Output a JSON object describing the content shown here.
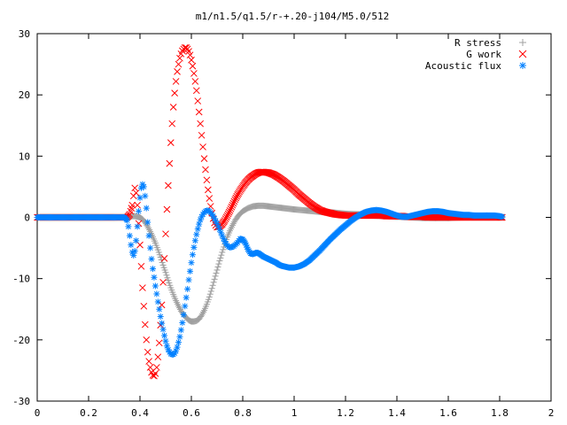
{
  "chart_data": {
    "type": "scatter",
    "title": "m1/n1.5/q1.5/r-+.20-j104/M5.0/512",
    "xlabel": "",
    "ylabel": "",
    "xlim": [
      0,
      2
    ],
    "ylim": [
      -30,
      30
    ],
    "xticks": [
      "0",
      "0.2",
      "0.4",
      "0.6",
      "0.8",
      "1",
      "1.2",
      "1.4",
      "1.6",
      "1.8",
      "2"
    ],
    "yticks": [
      "30",
      "20",
      "10",
      "0",
      "-10",
      "-20",
      "-30"
    ],
    "xtick_values": [
      0,
      0.2,
      0.4,
      0.6,
      0.8,
      1.0,
      1.2,
      1.4,
      1.6,
      1.8,
      2.0
    ],
    "ytick_values": [
      30,
      20,
      10,
      0,
      -10,
      -20,
      -30
    ],
    "grid": false,
    "legend_position": "top-right",
    "series": [
      {
        "name": "R stress",
        "marker": "plus",
        "color": "#a0a0a0",
        "x": [
          0.0,
          0.1,
          0.2,
          0.3,
          0.35,
          0.36,
          0.37,
          0.38,
          0.39,
          0.4,
          0.41,
          0.42,
          0.43,
          0.44,
          0.45,
          0.46,
          0.47,
          0.48,
          0.49,
          0.5,
          0.51,
          0.52,
          0.53,
          0.54,
          0.55,
          0.56,
          0.57,
          0.58,
          0.59,
          0.6,
          0.61,
          0.62,
          0.63,
          0.64,
          0.65,
          0.66,
          0.67,
          0.68,
          0.69,
          0.7,
          0.71,
          0.72,
          0.73,
          0.74,
          0.75,
          0.76,
          0.77,
          0.78,
          0.79,
          0.8,
          0.82,
          0.84,
          0.86,
          0.88,
          0.9,
          0.92,
          0.94,
          0.96,
          0.98,
          1.0,
          1.05,
          1.1,
          1.15,
          1.2,
          1.25,
          1.3,
          1.35,
          1.4,
          1.45,
          1.5,
          1.55,
          1.6,
          1.65,
          1.7,
          1.75,
          1.8,
          1.81
        ],
        "y": [
          0.0,
          0.0,
          0.0,
          0.0,
          0.0,
          0.1,
          0.2,
          0.2,
          0.1,
          0.0,
          -0.3,
          -0.8,
          -1.5,
          -2.3,
          -3.2,
          -4.2,
          -5.3,
          -6.5,
          -7.8,
          -9.0,
          -10.3,
          -11.5,
          -12.6,
          -13.6,
          -14.5,
          -15.3,
          -15.9,
          -16.4,
          -16.8,
          -17.0,
          -17.0,
          -16.9,
          -16.6,
          -16.0,
          -15.2,
          -14.2,
          -13.0,
          -11.6,
          -10.1,
          -8.6,
          -7.1,
          -5.7,
          -4.4,
          -3.2,
          -2.2,
          -1.3,
          -0.5,
          0.1,
          0.6,
          1.0,
          1.5,
          1.8,
          1.9,
          1.9,
          1.8,
          1.7,
          1.6,
          1.5,
          1.4,
          1.3,
          1.1,
          0.9,
          0.8,
          0.6,
          0.5,
          0.3,
          0.2,
          0.1,
          0.0,
          -0.1,
          -0.1,
          -0.1,
          0.0,
          0.0,
          0.0,
          0.0,
          0.0
        ]
      },
      {
        "name": "G work",
        "marker": "cross",
        "color": "#ff0000",
        "x": [
          0.0,
          0.1,
          0.2,
          0.3,
          0.35,
          0.36,
          0.37,
          0.375,
          0.38,
          0.385,
          0.39,
          0.395,
          0.4,
          0.405,
          0.41,
          0.415,
          0.42,
          0.425,
          0.43,
          0.435,
          0.44,
          0.445,
          0.45,
          0.455,
          0.46,
          0.465,
          0.47,
          0.475,
          0.48,
          0.485,
          0.49,
          0.495,
          0.5,
          0.505,
          0.51,
          0.515,
          0.52,
          0.525,
          0.53,
          0.535,
          0.54,
          0.545,
          0.55,
          0.555,
          0.56,
          0.565,
          0.57,
          0.575,
          0.58,
          0.585,
          0.59,
          0.595,
          0.6,
          0.605,
          0.61,
          0.615,
          0.62,
          0.625,
          0.63,
          0.635,
          0.64,
          0.645,
          0.65,
          0.655,
          0.66,
          0.665,
          0.67,
          0.675,
          0.68,
          0.685,
          0.69,
          0.695,
          0.7,
          0.71,
          0.72,
          0.73,
          0.74,
          0.75,
          0.76,
          0.77,
          0.78,
          0.79,
          0.8,
          0.81,
          0.82,
          0.83,
          0.84,
          0.85,
          0.86,
          0.87,
          0.88,
          0.9,
          0.92,
          0.94,
          0.96,
          0.98,
          1.0,
          1.02,
          1.04,
          1.06,
          1.08,
          1.1,
          1.12,
          1.14,
          1.16,
          1.18,
          1.2,
          1.22,
          1.24,
          1.26,
          1.28,
          1.3,
          1.32,
          1.34,
          1.36,
          1.38,
          1.4,
          1.42,
          1.44,
          1.46,
          1.48,
          1.5,
          1.52,
          1.54,
          1.56,
          1.58,
          1.6,
          1.62,
          1.64,
          1.66,
          1.68,
          1.7,
          1.72,
          1.74,
          1.76,
          1.78,
          1.8,
          1.81
        ],
        "y": [
          0.0,
          0.0,
          0.0,
          0.0,
          0.0,
          0.5,
          2.0,
          3.5,
          4.8,
          4.0,
          2.0,
          -1.0,
          -4.5,
          -8.0,
          -11.5,
          -14.5,
          -17.5,
          -20.0,
          -22.0,
          -23.5,
          -24.5,
          -25.3,
          -25.8,
          -25.9,
          -25.5,
          -24.5,
          -22.8,
          -20.5,
          -17.6,
          -14.3,
          -10.6,
          -6.7,
          -2.7,
          1.3,
          5.2,
          8.8,
          12.2,
          15.3,
          18.0,
          20.3,
          22.2,
          23.8,
          25.0,
          26.0,
          26.7,
          27.2,
          27.5,
          27.7,
          27.7,
          27.5,
          27.1,
          26.5,
          25.7,
          24.7,
          23.5,
          22.2,
          20.7,
          19.0,
          17.2,
          15.3,
          13.4,
          11.5,
          9.6,
          7.8,
          6.1,
          4.5,
          3.1,
          1.8,
          0.7,
          -0.2,
          -0.9,
          -1.3,
          -1.6,
          -1.5,
          -1.1,
          -0.5,
          0.3,
          1.1,
          2.0,
          2.9,
          3.7,
          4.4,
          5.0,
          5.6,
          6.1,
          6.5,
          6.8,
          7.1,
          7.3,
          7.4,
          7.4,
          7.3,
          7.0,
          6.5,
          5.9,
          5.2,
          4.5,
          3.7,
          3.0,
          2.3,
          1.7,
          1.2,
          0.9,
          0.7,
          0.5,
          0.4,
          0.3,
          0.3,
          0.3,
          0.3,
          0.3,
          0.3,
          0.3,
          0.3,
          0.2,
          0.2,
          0.2,
          0.2,
          0.1,
          0.1,
          0.1,
          0.1,
          0.0,
          0.0,
          0.0,
          0.0,
          0.0,
          0.0,
          0.0,
          0.0,
          0.0,
          0.0,
          0.0,
          0.0,
          0.0,
          0.0,
          0.0,
          0.0
        ]
      },
      {
        "name": "Acoustic flux",
        "marker": "star",
        "color": "#0080ff",
        "x": [
          0.0,
          0.05,
          0.1,
          0.15,
          0.2,
          0.25,
          0.3,
          0.34,
          0.35,
          0.355,
          0.36,
          0.365,
          0.37,
          0.375,
          0.38,
          0.385,
          0.39,
          0.395,
          0.4,
          0.405,
          0.41,
          0.415,
          0.42,
          0.425,
          0.43,
          0.435,
          0.44,
          0.445,
          0.45,
          0.455,
          0.46,
          0.465,
          0.47,
          0.475,
          0.48,
          0.485,
          0.49,
          0.495,
          0.5,
          0.505,
          0.51,
          0.515,
          0.52,
          0.525,
          0.53,
          0.535,
          0.54,
          0.545,
          0.55,
          0.555,
          0.56,
          0.565,
          0.57,
          0.575,
          0.58,
          0.585,
          0.59,
          0.595,
          0.6,
          0.605,
          0.61,
          0.615,
          0.62,
          0.625,
          0.63,
          0.635,
          0.64,
          0.645,
          0.65,
          0.655,
          0.66,
          0.665,
          0.67,
          0.675,
          0.68,
          0.685,
          0.69,
          0.695,
          0.7,
          0.705,
          0.71,
          0.715,
          0.72,
          0.725,
          0.73,
          0.735,
          0.74,
          0.745,
          0.75,
          0.755,
          0.76,
          0.765,
          0.77,
          0.775,
          0.78,
          0.785,
          0.79,
          0.8,
          0.81,
          0.82,
          0.83,
          0.84,
          0.85,
          0.86,
          0.87,
          0.88,
          0.89,
          0.9,
          0.91,
          0.92,
          0.93,
          0.94,
          0.95,
          0.96,
          0.97,
          0.98,
          0.99,
          1.0,
          1.01,
          1.02,
          1.03,
          1.04,
          1.05,
          1.06,
          1.07,
          1.08,
          1.1,
          1.12,
          1.14,
          1.16,
          1.18,
          1.2,
          1.22,
          1.24,
          1.26,
          1.28,
          1.3,
          1.32,
          1.34,
          1.36,
          1.38,
          1.4,
          1.42,
          1.44,
          1.46,
          1.48,
          1.5,
          1.52,
          1.54,
          1.56,
          1.58,
          1.6,
          1.62,
          1.64,
          1.66,
          1.68,
          1.7,
          1.72,
          1.74,
          1.76,
          1.78,
          1.8,
          1.81
        ],
        "y": [
          0.0,
          0.0,
          0.0,
          0.0,
          0.0,
          0.0,
          0.0,
          0.0,
          -0.5,
          -1.5,
          -3.0,
          -4.5,
          -5.7,
          -6.2,
          -5.5,
          -3.8,
          -1.5,
          1.0,
          3.2,
          4.8,
          5.4,
          5.0,
          3.5,
          1.5,
          -0.8,
          -3.0,
          -5.0,
          -6.8,
          -8.4,
          -9.8,
          -11.2,
          -12.5,
          -13.8,
          -15.0,
          -16.2,
          -17.3,
          -18.3,
          -19.3,
          -20.2,
          -21.0,
          -21.6,
          -22.0,
          -22.3,
          -22.4,
          -22.4,
          -22.2,
          -21.8,
          -21.2,
          -20.4,
          -19.5,
          -18.4,
          -17.2,
          -15.9,
          -14.5,
          -13.1,
          -11.7,
          -10.2,
          -8.8,
          -7.4,
          -6.1,
          -4.9,
          -3.8,
          -2.8,
          -1.9,
          -1.1,
          -0.4,
          0.1,
          0.5,
          0.8,
          1.0,
          1.1,
          1.1,
          1.0,
          0.8,
          0.5,
          0.2,
          -0.2,
          -0.6,
          -1.0,
          -1.5,
          -2.0,
          -2.5,
          -3.0,
          -3.5,
          -3.9,
          -4.3,
          -4.6,
          -4.8,
          -4.9,
          -4.9,
          -4.8,
          -4.7,
          -4.5,
          -4.3,
          -4.1,
          -3.8,
          -3.5,
          -3.6,
          -4.2,
          -5.2,
          -5.9,
          -6.0,
          -5.8,
          -5.8,
          -6.1,
          -6.4,
          -6.6,
          -6.8,
          -7.0,
          -7.2,
          -7.4,
          -7.7,
          -7.9,
          -8.0,
          -8.1,
          -8.2,
          -8.2,
          -8.2,
          -8.1,
          -8.0,
          -7.8,
          -7.6,
          -7.3,
          -7.0,
          -6.6,
          -6.2,
          -5.4,
          -4.5,
          -3.6,
          -2.8,
          -2.0,
          -1.3,
          -0.6,
          0.0,
          0.5,
          0.9,
          1.1,
          1.2,
          1.1,
          0.9,
          0.6,
          0.3,
          0.1,
          0.1,
          0.3,
          0.5,
          0.7,
          0.9,
          1.0,
          1.0,
          0.9,
          0.7,
          0.6,
          0.5,
          0.4,
          0.4,
          0.3,
          0.3,
          0.3,
          0.3,
          0.3,
          0.2,
          0.1
        ]
      }
    ]
  }
}
